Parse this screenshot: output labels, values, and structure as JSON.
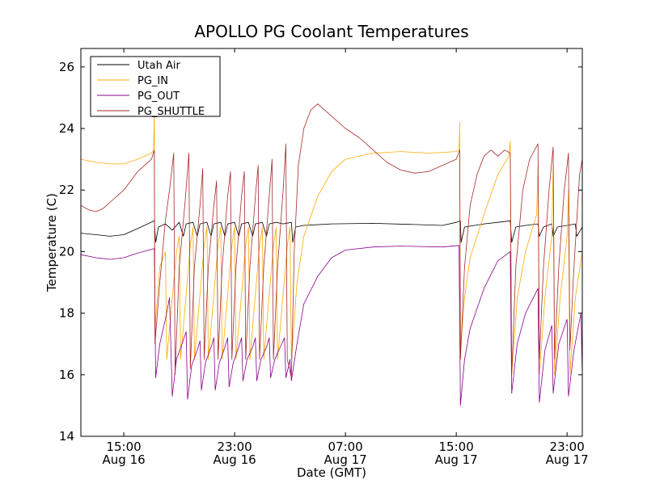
{
  "chart_data": {
    "type": "line",
    "title": "APOLLO PG Coolant Temperatures",
    "xlabel": "Date (GMT)",
    "ylabel": "Temperature (C)",
    "ylim": [
      14,
      26.6
    ],
    "xlim_hours": [
      11.9,
      48.1
    ],
    "x_unit": "hours since Aug 16 00:00 GMT",
    "yticks": [
      14,
      16,
      18,
      20,
      22,
      24,
      26
    ],
    "xticks": [
      {
        "hour": 15,
        "line1": "15:00",
        "line2": "Aug 16"
      },
      {
        "hour": 23,
        "line1": "23:00",
        "line2": "Aug 16"
      },
      {
        "hour": 31,
        "line1": "07:00",
        "line2": "Aug 17"
      },
      {
        "hour": 39,
        "line1": "15:00",
        "line2": "Aug 17"
      },
      {
        "hour": 47,
        "line1": "23:00",
        "line2": "Aug 17"
      }
    ],
    "legend_position": "top-left",
    "series": [
      {
        "name": "Utah Air",
        "color": "#000000",
        "points": [
          [
            11.9,
            20.6
          ],
          [
            13,
            20.55
          ],
          [
            14,
            20.5
          ],
          [
            15,
            20.55
          ],
          [
            16,
            20.75
          ],
          [
            17.2,
            21.0
          ],
          [
            17.3,
            20.3
          ],
          [
            17.5,
            20.8
          ],
          [
            18,
            20.9
          ],
          [
            18.5,
            20.7
          ],
          [
            19,
            20.95
          ],
          [
            19.3,
            20.5
          ],
          [
            19.5,
            20.9
          ],
          [
            20,
            20.95
          ],
          [
            20.3,
            20.5
          ],
          [
            20.5,
            20.9
          ],
          [
            21,
            20.95
          ],
          [
            21.3,
            20.5
          ],
          [
            21.5,
            20.9
          ],
          [
            22,
            20.95
          ],
          [
            22.3,
            20.5
          ],
          [
            22.5,
            20.9
          ],
          [
            23,
            20.95
          ],
          [
            23.3,
            20.5
          ],
          [
            23.5,
            20.9
          ],
          [
            24,
            20.95
          ],
          [
            24.3,
            20.5
          ],
          [
            24.5,
            20.9
          ],
          [
            25,
            20.95
          ],
          [
            25.3,
            20.5
          ],
          [
            25.5,
            20.9
          ],
          [
            26,
            20.95
          ],
          [
            26.5,
            20.9
          ],
          [
            27.1,
            20.95
          ],
          [
            27.2,
            20.3
          ],
          [
            27.4,
            20.8
          ],
          [
            28,
            20.85
          ],
          [
            30,
            20.9
          ],
          [
            33,
            20.92
          ],
          [
            36,
            20.88
          ],
          [
            38,
            20.85
          ],
          [
            39,
            20.95
          ],
          [
            39.3,
            21.0
          ],
          [
            39.35,
            20.3
          ],
          [
            39.6,
            20.8
          ],
          [
            41,
            20.9
          ],
          [
            42,
            20.95
          ],
          [
            42.9,
            21.0
          ],
          [
            43.0,
            20.3
          ],
          [
            43.3,
            20.8
          ],
          [
            44,
            20.85
          ],
          [
            44.9,
            20.9
          ],
          [
            45.0,
            20.5
          ],
          [
            45.3,
            20.8
          ],
          [
            45.9,
            20.9
          ],
          [
            46.0,
            20.5
          ],
          [
            46.3,
            20.8
          ],
          [
            47,
            20.85
          ],
          [
            47.6,
            20.9
          ],
          [
            47.7,
            20.5
          ],
          [
            48.1,
            20.8
          ]
        ]
      },
      {
        "name": "PG_IN",
        "color": "#ffaa00",
        "points": [
          [
            11.9,
            23.0
          ],
          [
            13,
            22.9
          ],
          [
            14,
            22.85
          ],
          [
            15,
            22.85
          ],
          [
            16,
            23.0
          ],
          [
            17.0,
            23.2
          ],
          [
            17.15,
            23.3
          ],
          [
            17.2,
            24.6
          ],
          [
            17.25,
            17.5
          ],
          [
            17.6,
            19.5
          ],
          [
            18,
            20.0
          ],
          [
            18.1,
            16.5
          ],
          [
            18.8,
            20.0
          ],
          [
            19.0,
            20.5
          ],
          [
            19.1,
            16.5
          ],
          [
            19.8,
            20.2
          ],
          [
            20.0,
            20.8
          ],
          [
            20.1,
            16.5
          ],
          [
            20.8,
            20.2
          ],
          [
            21.0,
            20.8
          ],
          [
            21.1,
            16.5
          ],
          [
            21.8,
            20.2
          ],
          [
            22.0,
            20.8
          ],
          [
            22.1,
            16.5
          ],
          [
            22.8,
            20.2
          ],
          [
            23.0,
            20.8
          ],
          [
            23.1,
            16.5
          ],
          [
            23.8,
            20.2
          ],
          [
            24.0,
            20.8
          ],
          [
            24.1,
            16.5
          ],
          [
            24.8,
            20.2
          ],
          [
            25.0,
            20.8
          ],
          [
            25.1,
            16.5
          ],
          [
            25.8,
            20.2
          ],
          [
            26.0,
            20.8
          ],
          [
            26.1,
            16.5
          ],
          [
            26.8,
            20.2
          ],
          [
            27.0,
            20.8
          ],
          [
            27.1,
            16.5
          ],
          [
            27.5,
            19.0
          ],
          [
            28,
            20.5
          ],
          [
            29,
            21.8
          ],
          [
            30,
            22.6
          ],
          [
            31,
            23.0
          ],
          [
            33,
            23.2
          ],
          [
            35,
            23.25
          ],
          [
            37,
            23.2
          ],
          [
            39,
            23.25
          ],
          [
            39.2,
            23.3
          ],
          [
            39.25,
            24.2
          ],
          [
            39.3,
            16.8
          ],
          [
            39.6,
            18.5
          ],
          [
            40,
            19.8
          ],
          [
            41,
            21.2
          ],
          [
            42,
            22.5
          ],
          [
            42.8,
            23.1
          ],
          [
            42.9,
            23.6
          ],
          [
            43.0,
            16.0
          ],
          [
            43.4,
            18.5
          ],
          [
            44,
            20.0
          ],
          [
            44.8,
            21.2
          ],
          [
            44.9,
            22.8
          ],
          [
            45.0,
            16.0
          ],
          [
            45.4,
            18.5
          ],
          [
            45.9,
            20.5
          ],
          [
            46.0,
            22.8
          ],
          [
            46.1,
            16.0
          ],
          [
            46.5,
            18.5
          ],
          [
            47.0,
            20.5
          ],
          [
            47.1,
            22.0
          ],
          [
            47.2,
            16.0
          ],
          [
            47.6,
            18.5
          ],
          [
            48.1,
            20.0
          ]
        ]
      },
      {
        "name": "PG_OUT",
        "color": "#880088",
        "points": [
          [
            11.9,
            19.9
          ],
          [
            13,
            19.8
          ],
          [
            14,
            19.75
          ],
          [
            15,
            19.8
          ],
          [
            16,
            19.95
          ],
          [
            17.2,
            20.1
          ],
          [
            17.3,
            15.9
          ],
          [
            17.6,
            17.0
          ],
          [
            18.0,
            17.8
          ],
          [
            18.3,
            18.5
          ],
          [
            18.5,
            15.3
          ],
          [
            18.8,
            16.5
          ],
          [
            19.2,
            17.0
          ],
          [
            19.5,
            17.4
          ],
          [
            19.6,
            15.2
          ],
          [
            19.9,
            16.3
          ],
          [
            20.3,
            16.8
          ],
          [
            20.5,
            17.1
          ],
          [
            20.6,
            15.5
          ],
          [
            20.9,
            16.4
          ],
          [
            21.3,
            16.9
          ],
          [
            21.5,
            17.2
          ],
          [
            21.6,
            15.5
          ],
          [
            21.9,
            16.4
          ],
          [
            22.3,
            16.9
          ],
          [
            22.5,
            17.2
          ],
          [
            22.6,
            15.6
          ],
          [
            22.9,
            16.4
          ],
          [
            23.3,
            16.9
          ],
          [
            23.5,
            17.2
          ],
          [
            23.6,
            15.8
          ],
          [
            23.9,
            16.5
          ],
          [
            24.3,
            16.9
          ],
          [
            24.5,
            17.2
          ],
          [
            24.6,
            15.8
          ],
          [
            24.9,
            16.5
          ],
          [
            25.3,
            16.9
          ],
          [
            25.5,
            17.2
          ],
          [
            25.6,
            15.9
          ],
          [
            25.9,
            16.5
          ],
          [
            26.3,
            16.9
          ],
          [
            26.6,
            17.2
          ],
          [
            26.7,
            15.9
          ],
          [
            27.0,
            16.5
          ],
          [
            27.1,
            15.8
          ],
          [
            27.5,
            17.0
          ],
          [
            28,
            18.3
          ],
          [
            29,
            19.2
          ],
          [
            30,
            19.8
          ],
          [
            31,
            20.05
          ],
          [
            33,
            20.15
          ],
          [
            35,
            20.18
          ],
          [
            38,
            20.15
          ],
          [
            39.2,
            20.2
          ],
          [
            39.3,
            15.0
          ],
          [
            39.6,
            16.5
          ],
          [
            40,
            17.5
          ],
          [
            41,
            18.8
          ],
          [
            42,
            19.7
          ],
          [
            42.9,
            20.0
          ],
          [
            43.0,
            15.4
          ],
          [
            43.4,
            17.0
          ],
          [
            44,
            18.0
          ],
          [
            44.9,
            18.8
          ],
          [
            45.0,
            15.1
          ],
          [
            45.4,
            16.8
          ],
          [
            45.9,
            17.6
          ],
          [
            46.0,
            15.4
          ],
          [
            46.4,
            17.0
          ],
          [
            47.0,
            17.8
          ],
          [
            47.1,
            15.3
          ],
          [
            47.5,
            16.8
          ],
          [
            48.0,
            18.0
          ],
          [
            48.1,
            16.0
          ]
        ]
      },
      {
        "name": "PG_SHUTTLE",
        "color": "#a52a2a",
        "points": [
          [
            11.9,
            21.5
          ],
          [
            12.5,
            21.35
          ],
          [
            13,
            21.3
          ],
          [
            13.5,
            21.4
          ],
          [
            14,
            21.6
          ],
          [
            15,
            22.0
          ],
          [
            16,
            22.6
          ],
          [
            17.0,
            23.0
          ],
          [
            17.2,
            23.3
          ],
          [
            17.25,
            17.0
          ],
          [
            17.6,
            19.0
          ],
          [
            18.0,
            21.0
          ],
          [
            18.3,
            22.0
          ],
          [
            18.6,
            23.2
          ],
          [
            18.7,
            16.0
          ],
          [
            19.0,
            19.5
          ],
          [
            19.4,
            21.5
          ],
          [
            19.7,
            23.2
          ],
          [
            19.8,
            16.2
          ],
          [
            20.1,
            19.5
          ],
          [
            20.5,
            21.5
          ],
          [
            20.7,
            22.7
          ],
          [
            20.8,
            16.5
          ],
          [
            21.1,
            19.5
          ],
          [
            21.5,
            21.5
          ],
          [
            21.7,
            22.3
          ],
          [
            21.8,
            16.5
          ],
          [
            22.1,
            19.5
          ],
          [
            22.5,
            21.8
          ],
          [
            22.7,
            22.6
          ],
          [
            22.8,
            16.5
          ],
          [
            23.1,
            19.5
          ],
          [
            23.5,
            21.8
          ],
          [
            23.7,
            22.6
          ],
          [
            23.8,
            16.5
          ],
          [
            24.1,
            19.5
          ],
          [
            24.5,
            21.8
          ],
          [
            24.7,
            22.8
          ],
          [
            24.8,
            16.5
          ],
          [
            25.1,
            19.5
          ],
          [
            25.5,
            21.8
          ],
          [
            25.7,
            23.0
          ],
          [
            25.8,
            16.5
          ],
          [
            26.1,
            19.5
          ],
          [
            26.5,
            22.0
          ],
          [
            26.7,
            23.5
          ],
          [
            26.8,
            16.5
          ],
          [
            27.1,
            15.9
          ],
          [
            27.3,
            20.0
          ],
          [
            27.6,
            22.8
          ],
          [
            28,
            24.0
          ],
          [
            28.5,
            24.6
          ],
          [
            29,
            24.8
          ],
          [
            29.5,
            24.6
          ],
          [
            30,
            24.4
          ],
          [
            31,
            24.0
          ],
          [
            32,
            23.7
          ],
          [
            33,
            23.3
          ],
          [
            34,
            22.9
          ],
          [
            35,
            22.65
          ],
          [
            36,
            22.55
          ],
          [
            37,
            22.6
          ],
          [
            38,
            22.8
          ],
          [
            39.0,
            23.0
          ],
          [
            39.25,
            23.3
          ],
          [
            39.3,
            16.5
          ],
          [
            39.6,
            19.5
          ],
          [
            40,
            21.5
          ],
          [
            40.5,
            22.5
          ],
          [
            41,
            23.1
          ],
          [
            41.5,
            23.3
          ],
          [
            42,
            23.1
          ],
          [
            42.5,
            23.3
          ],
          [
            42.9,
            23.2
          ],
          [
            43.0,
            16.0
          ],
          [
            43.3,
            19.5
          ],
          [
            43.8,
            22.0
          ],
          [
            44.3,
            23.0
          ],
          [
            44.9,
            23.5
          ],
          [
            45.0,
            16.5
          ],
          [
            45.3,
            19.5
          ],
          [
            45.7,
            22.0
          ],
          [
            46.0,
            23.4
          ],
          [
            46.1,
            16.5
          ],
          [
            46.4,
            19.5
          ],
          [
            46.8,
            22.0
          ],
          [
            47.1,
            23.2
          ],
          [
            47.2,
            16.8
          ],
          [
            47.5,
            19.5
          ],
          [
            47.9,
            22.5
          ],
          [
            48.1,
            23.0
          ]
        ]
      }
    ]
  }
}
